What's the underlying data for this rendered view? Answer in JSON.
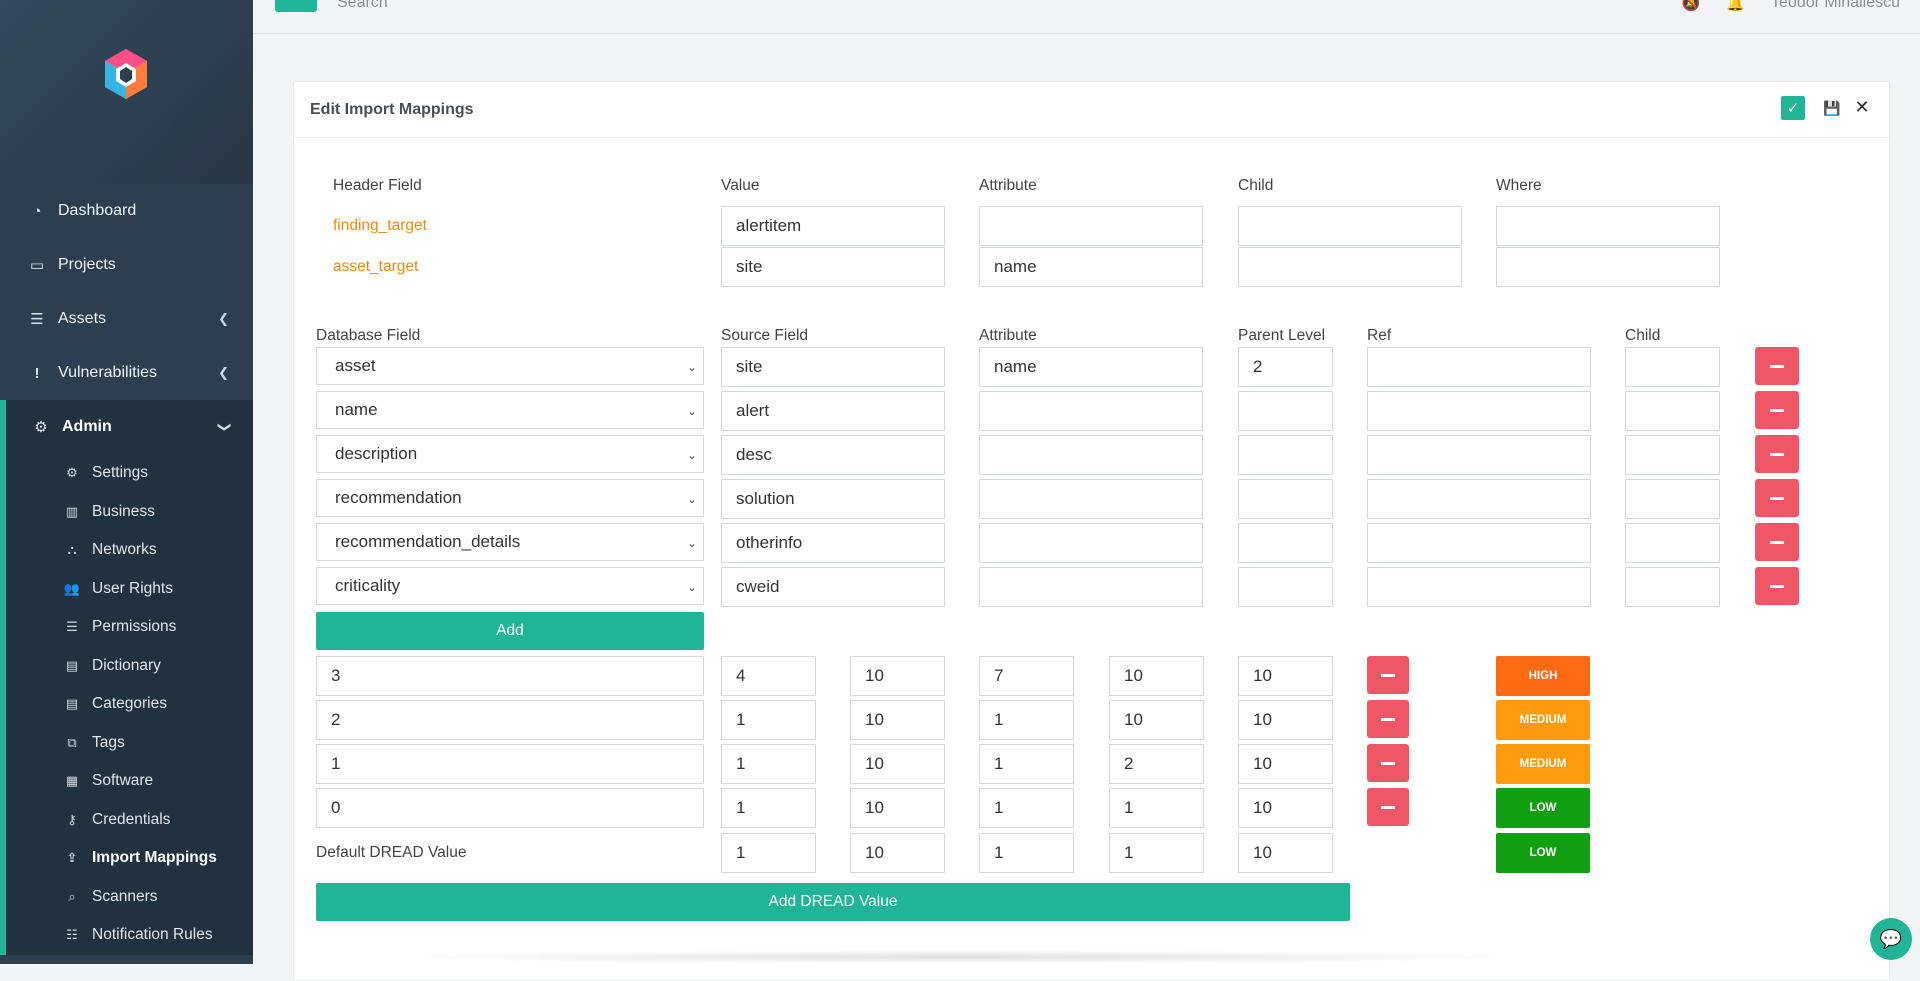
{
  "topbar": {
    "search_label": "Search",
    "user_name": "Teodor Mihailescu"
  },
  "sidebar": {
    "main_items": [
      {
        "label": "Dashboard",
        "icon": "dashboard-icon"
      },
      {
        "label": "Projects",
        "icon": "laptop-icon"
      },
      {
        "label": "Assets",
        "icon": "database-icon"
      },
      {
        "label": "Vulnerabilities",
        "icon": "exclamation-icon"
      },
      {
        "label": "Admin",
        "icon": "cogs-icon"
      }
    ],
    "admin_items": [
      {
        "label": "Settings",
        "icon": "cogs-icon"
      },
      {
        "label": "Business",
        "icon": "building-icon"
      },
      {
        "label": "Networks",
        "icon": "sitemap-icon"
      },
      {
        "label": "User Rights",
        "icon": "users-icon"
      },
      {
        "label": "Permissions",
        "icon": "database-icon"
      },
      {
        "label": "Dictionary",
        "icon": "book-icon"
      },
      {
        "label": "Categories",
        "icon": "book-icon"
      },
      {
        "label": "Tags",
        "icon": "tags-icon"
      },
      {
        "label": "Software",
        "icon": "boxes-icon"
      },
      {
        "label": "Credentials",
        "icon": "key-icon"
      },
      {
        "label": "Import Mappings",
        "icon": "upload-icon"
      },
      {
        "label": "Scanners",
        "icon": "search-icon"
      },
      {
        "label": "Notification Rules",
        "icon": "list-icon"
      }
    ],
    "active_item": "Import Mappings"
  },
  "card": {
    "title": "Edit Import Mappings"
  },
  "header_fields": {
    "columns": [
      "Header Field",
      "Value",
      "Attribute",
      "Child",
      "Where"
    ],
    "rows": [
      {
        "label": "finding_target",
        "value": "alertitem",
        "attribute": "",
        "child": "",
        "where": ""
      },
      {
        "label": "asset_target",
        "value": "site",
        "attribute": "name",
        "child": "",
        "where": ""
      }
    ]
  },
  "mappings": {
    "columns": [
      "Database Field",
      "Source Field",
      "Attribute",
      "Parent Level",
      "Ref",
      "Child"
    ],
    "rows": [
      {
        "db_field": "asset",
        "source": "site",
        "attribute": "name",
        "parent_level": "2",
        "ref": "",
        "child": ""
      },
      {
        "db_field": "name",
        "source": "alert",
        "attribute": "",
        "parent_level": "",
        "ref": "",
        "child": ""
      },
      {
        "db_field": "description",
        "source": "desc",
        "attribute": "",
        "parent_level": "",
        "ref": "",
        "child": ""
      },
      {
        "db_field": "recommendation",
        "source": "solution",
        "attribute": "",
        "parent_level": "",
        "ref": "",
        "child": ""
      },
      {
        "db_field": "recommendation_details",
        "source": "otherinfo",
        "attribute": "",
        "parent_level": "",
        "ref": "",
        "child": ""
      },
      {
        "db_field": "criticality",
        "source": "cweid",
        "attribute": "",
        "parent_level": "",
        "ref": "",
        "child": ""
      }
    ],
    "add_label": "Add"
  },
  "dread": {
    "rows": [
      {
        "key": "3",
        "v1": "4",
        "v2": "10",
        "v3": "7",
        "v4": "10",
        "v5": "10",
        "level": "HIGH",
        "color": "#ff6a13"
      },
      {
        "key": "2",
        "v1": "1",
        "v2": "10",
        "v3": "1",
        "v4": "10",
        "v5": "10",
        "level": "MEDIUM",
        "color": "#ff9a0d"
      },
      {
        "key": "1",
        "v1": "1",
        "v2": "10",
        "v3": "1",
        "v4": "2",
        "v5": "10",
        "level": "MEDIUM",
        "color": "#ff9a0d"
      },
      {
        "key": "0",
        "v1": "1",
        "v2": "10",
        "v3": "1",
        "v4": "1",
        "v5": "10",
        "level": "LOW",
        "color": "#12a012"
      }
    ],
    "default": {
      "label": "Default DREAD Value",
      "v1": "1",
      "v2": "10",
      "v3": "1",
      "v4": "1",
      "v5": "10",
      "level": "LOW",
      "color": "#12a012"
    },
    "add_label": "Add DREAD Value"
  },
  "colors": {
    "accent": "#1fb596",
    "sidebar": "#2c3e50",
    "danger": "#ef5767",
    "target_label": "#f0890f"
  }
}
